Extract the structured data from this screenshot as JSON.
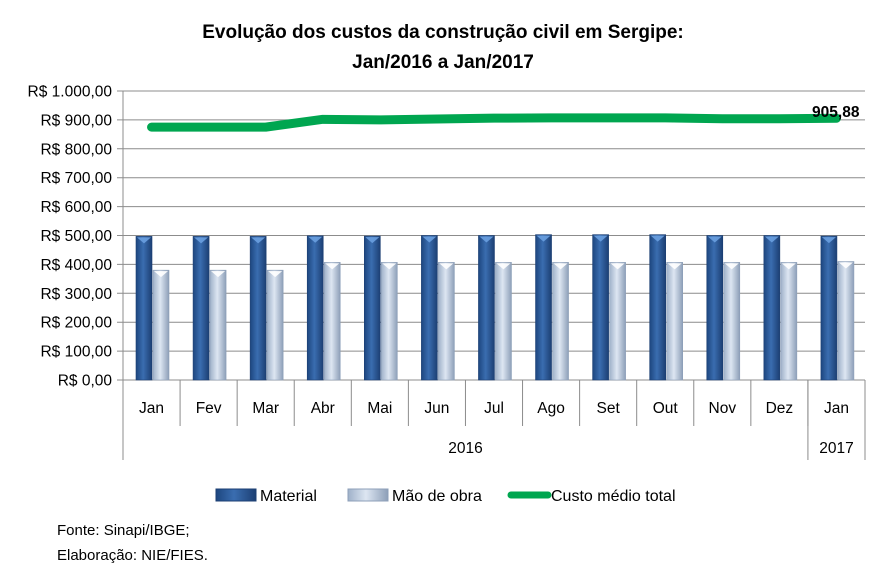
{
  "chart_data": {
    "type": "bar",
    "title": "Evolução dos custos da construção civil em Sergipe:",
    "subtitle": "Jan/2016 a Jan/2017",
    "xlabel": "",
    "ylabel": "",
    "categories": [
      "Jan",
      "Fev",
      "Mar",
      "Abr",
      "Mai",
      "Jun",
      "Jul",
      "Ago",
      "Set",
      "Out",
      "Nov",
      "Dez",
      "Jan"
    ],
    "category_groups": [
      {
        "label": "2016",
        "span": 12
      },
      {
        "label": "2017",
        "span": 1
      }
    ],
    "ylim": [
      0,
      1000
    ],
    "yticks": [
      0,
      100,
      200,
      300,
      400,
      500,
      600,
      700,
      800,
      900,
      1000
    ],
    "ytick_labels": [
      "R$ 0,00",
      "R$ 100,00",
      "R$ 200,00",
      "R$ 300,00",
      "R$ 400,00",
      "R$ 500,00",
      "R$ 600,00",
      "R$ 700,00",
      "R$ 800,00",
      "R$ 900,00",
      "R$ 1.000,00"
    ],
    "grid": true,
    "legend_position": "bottom",
    "series": [
      {
        "name": "Material",
        "kind": "bar",
        "color": "#2a5a9a",
        "values": [
          497,
          497,
          497,
          499,
          498,
          500,
          500,
          503,
          503,
          503,
          500,
          500,
          498
        ]
      },
      {
        "name": "Mão de obra",
        "kind": "bar",
        "color": "#c6d5ea",
        "values": [
          380,
          380,
          380,
          407,
          407,
          407,
          407,
          407,
          407,
          407,
          407,
          407,
          410
        ]
      },
      {
        "name": "Custo médio total",
        "kind": "line",
        "color": "#00a650",
        "values": [
          875,
          875,
          875,
          902,
          900,
          903,
          906,
          907,
          907,
          907,
          904,
          904,
          905.88
        ]
      }
    ],
    "annotations": [
      {
        "series": "Custo médio total",
        "index": 12,
        "text": "905,88"
      }
    ]
  },
  "source": {
    "line1": "Fonte: Sinapi/IBGE;",
    "line2": "Elaboração: NIE/FIES."
  }
}
